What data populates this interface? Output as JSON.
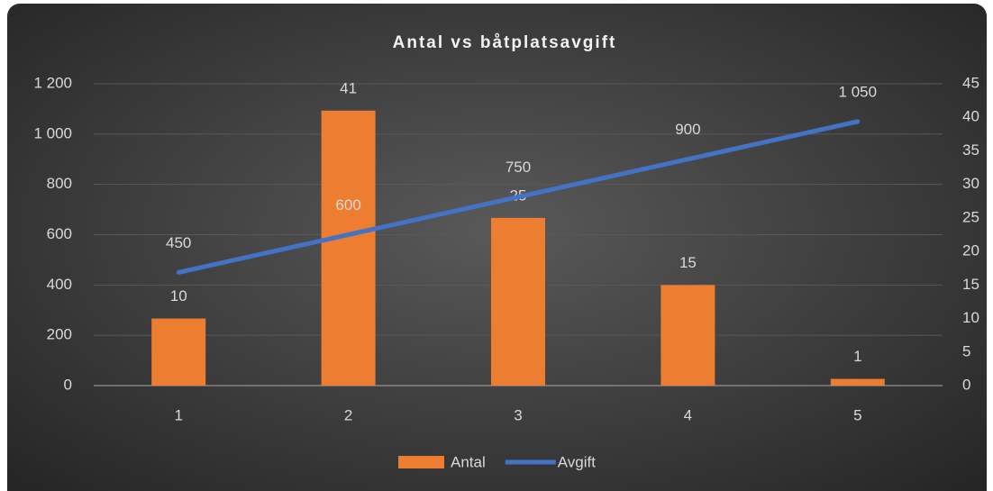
{
  "chart_data": {
    "type": "combo",
    "title": "Antal vs båtplatsavgift",
    "categories": [
      "1",
      "2",
      "3",
      "4",
      "5"
    ],
    "series": [
      {
        "name": "Antal",
        "type": "bar",
        "axis": "y2",
        "color": "#ed7d31",
        "values": [
          10,
          41,
          25,
          15,
          1
        ]
      },
      {
        "name": "Avgift",
        "type": "line",
        "axis": "y",
        "color": "#4472c4",
        "values": [
          450,
          600,
          750,
          900,
          1050
        ],
        "value_labels": [
          "450",
          "600",
          "750",
          "900",
          "1 050"
        ]
      }
    ],
    "ylim": [
      0,
      1200
    ],
    "yticks": [
      0,
      200,
      400,
      600,
      800,
      {
        "value": 1000,
        "label": "1 000"
      },
      {
        "value": 1200,
        "label": "1 200"
      }
    ],
    "y2lim": [
      0,
      45
    ],
    "y2ticks": [
      0,
      5,
      10,
      15,
      20,
      25,
      30,
      35,
      40,
      45
    ],
    "grid": true,
    "legend": "bottom"
  }
}
